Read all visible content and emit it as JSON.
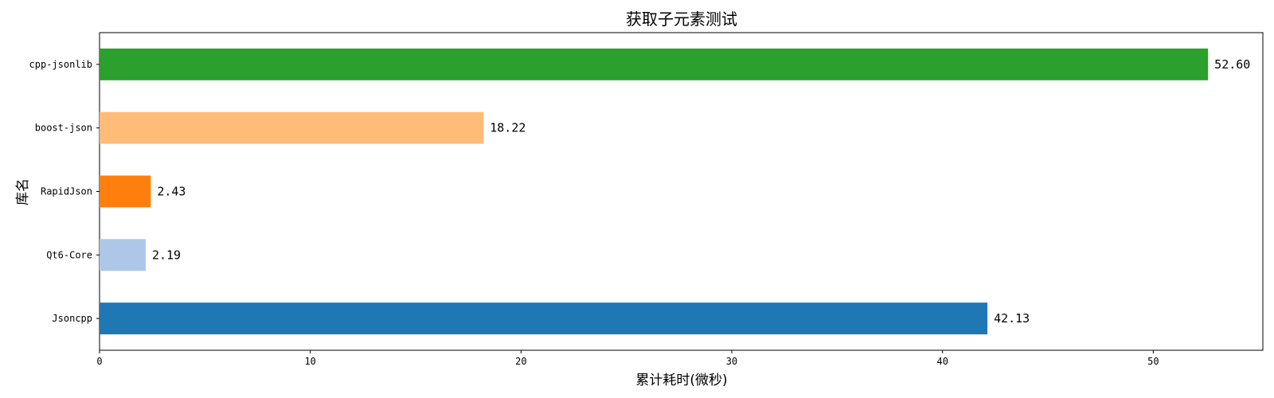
{
  "chart_data": {
    "type": "bar",
    "orientation": "horizontal",
    "title": "获取子元素测试",
    "xlabel": "累计耗时(微秒)",
    "ylabel": "库名",
    "xlim": [
      0,
      55.2
    ],
    "xticks": [
      0,
      10,
      20,
      30,
      40,
      50
    ],
    "categories": [
      "Jsoncpp",
      "Qt6-Core",
      "RapidJson",
      "boost-json",
      "cpp-jsonlib"
    ],
    "values": [
      42.13,
      2.19,
      2.43,
      18.22,
      52.6
    ],
    "value_labels": [
      "42.13",
      "2.19",
      "2.43",
      "18.22",
      "52.60"
    ],
    "colors": [
      "#1f77b4",
      "#aec7e8",
      "#ff7f0e",
      "#ffbb78",
      "#2ca02c"
    ],
    "grid": false,
    "legend": "none"
  }
}
